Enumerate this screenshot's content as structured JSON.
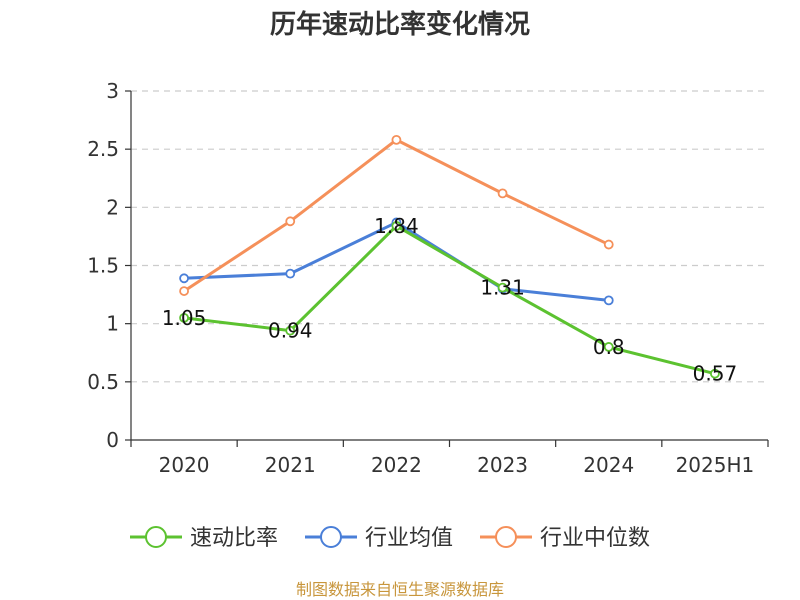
{
  "chart_data": {
    "type": "line",
    "title": "历年速动比率变化情况",
    "categories": [
      "2020",
      "2021",
      "2022",
      "2023",
      "2024",
      "2025H1"
    ],
    "ylim": [
      0,
      3
    ],
    "yticks": [
      "0",
      "0.5",
      "1",
      "1.5",
      "2",
      "2.5",
      "3"
    ],
    "ytick_values": [
      0,
      0.5,
      1,
      1.5,
      2,
      2.5,
      3
    ],
    "grid": true,
    "legend_position": "bottom",
    "series": [
      {
        "name": "速动比率",
        "color": "#5cc230",
        "values": [
          1.05,
          0.94,
          1.84,
          1.31,
          0.8,
          0.57
        ],
        "data_labels": [
          "1.05",
          "0.94",
          "1.84",
          "1.31",
          "0.8",
          "0.57"
        ]
      },
      {
        "name": "行业均值",
        "color": "#4a7fd8",
        "values": [
          1.39,
          1.43,
          1.87,
          1.3,
          1.2,
          null
        ]
      },
      {
        "name": "行业中位数",
        "color": "#f5905a",
        "values": [
          1.28,
          1.88,
          2.58,
          2.12,
          1.68,
          null
        ]
      }
    ],
    "source": "制图数据来自恒生聚源数据库"
  }
}
